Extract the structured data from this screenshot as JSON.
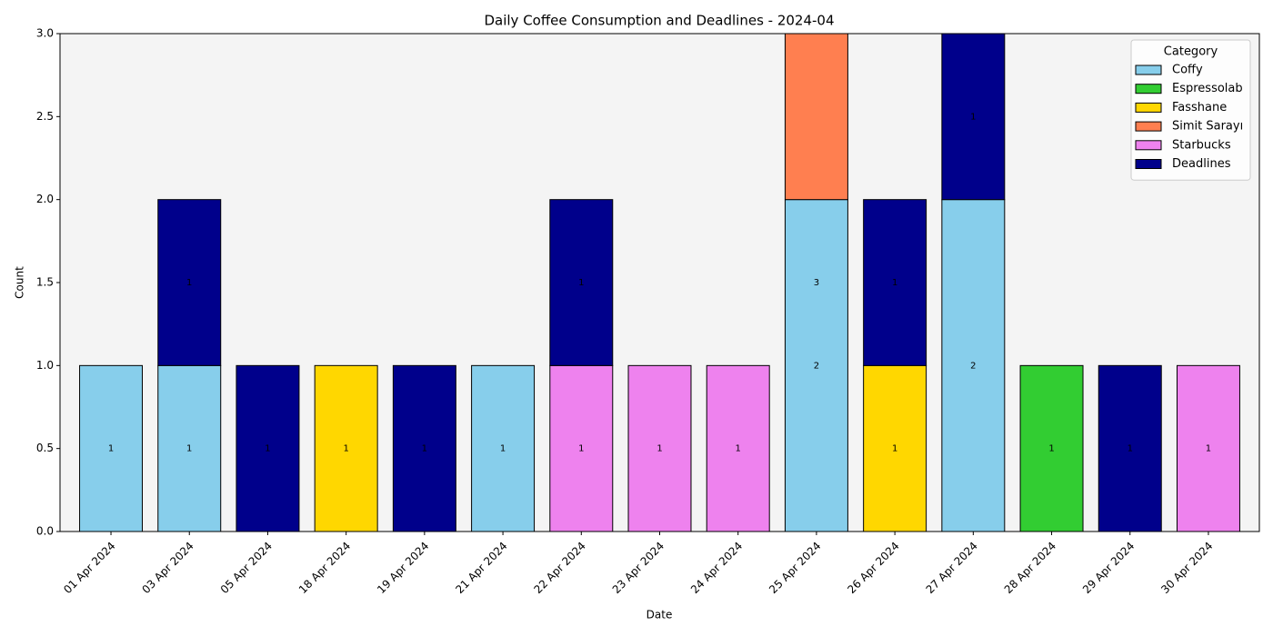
{
  "chart_data": {
    "type": "stacked_bar",
    "title": "Daily Coffee Consumption and Deadlines - 2024-04",
    "xlabel": "Date",
    "ylabel": "Count",
    "categories": [
      "01 Apr 2024",
      "03 Apr 2024",
      "05 Apr 2024",
      "18 Apr 2024",
      "19 Apr 2024",
      "21 Apr 2024",
      "22 Apr 2024",
      "23 Apr 2024",
      "24 Apr 2024",
      "25 Apr 2024",
      "26 Apr 2024",
      "27 Apr 2024",
      "28 Apr 2024",
      "29 Apr 2024",
      "30 Apr 2024"
    ],
    "series": [
      {
        "name": "Coffy",
        "color": "#87ceeb",
        "show_labels": true,
        "values": [
          1,
          1,
          null,
          null,
          null,
          1,
          null,
          null,
          null,
          2,
          null,
          2,
          null,
          null,
          null
        ]
      },
      {
        "name": "Espressolab",
        "color": "#32cd32",
        "show_labels": true,
        "values": [
          null,
          null,
          null,
          null,
          null,
          null,
          null,
          null,
          null,
          null,
          null,
          null,
          1,
          null,
          null
        ]
      },
      {
        "name": "Fasshane",
        "color": "#ffd700",
        "show_labels": true,
        "values": [
          null,
          null,
          null,
          1,
          null,
          null,
          null,
          null,
          null,
          null,
          1,
          null,
          null,
          null,
          null
        ]
      },
      {
        "name": "Simit Sarayı",
        "color": "#ff7f50",
        "show_labels": false,
        "values": [
          null,
          null,
          null,
          null,
          null,
          null,
          null,
          null,
          null,
          1,
          null,
          null,
          null,
          null,
          null
        ]
      },
      {
        "name": "Starbucks",
        "color": "#ee82ee",
        "show_labels": true,
        "values": [
          null,
          null,
          null,
          null,
          null,
          null,
          1,
          1,
          1,
          null,
          null,
          null,
          null,
          null,
          1
        ]
      },
      {
        "name": "Deadlines",
        "color": "#00008b",
        "show_labels": true,
        "values": [
          null,
          1,
          1,
          null,
          1,
          null,
          1,
          null,
          null,
          null,
          1,
          1,
          null,
          1,
          null
        ]
      }
    ],
    "total_labels": [
      null,
      null,
      null,
      null,
      null,
      null,
      null,
      null,
      null,
      "3",
      null,
      null,
      null,
      null,
      null
    ],
    "ylim": [
      0,
      3
    ],
    "yticks": [
      {
        "value": 0,
        "label": "0.0"
      },
      {
        "value": 0.5,
        "label": "0.5"
      },
      {
        "value": 1,
        "label": "1.0"
      },
      {
        "value": 1.5,
        "label": "1.5"
      },
      {
        "value": 2,
        "label": "2.0"
      },
      {
        "value": 2.5,
        "label": "2.5"
      },
      {
        "value": 3,
        "label": "3.0"
      }
    ],
    "legend_title": "Category",
    "legend_position": "upper right",
    "background": "#f4f4f4"
  }
}
